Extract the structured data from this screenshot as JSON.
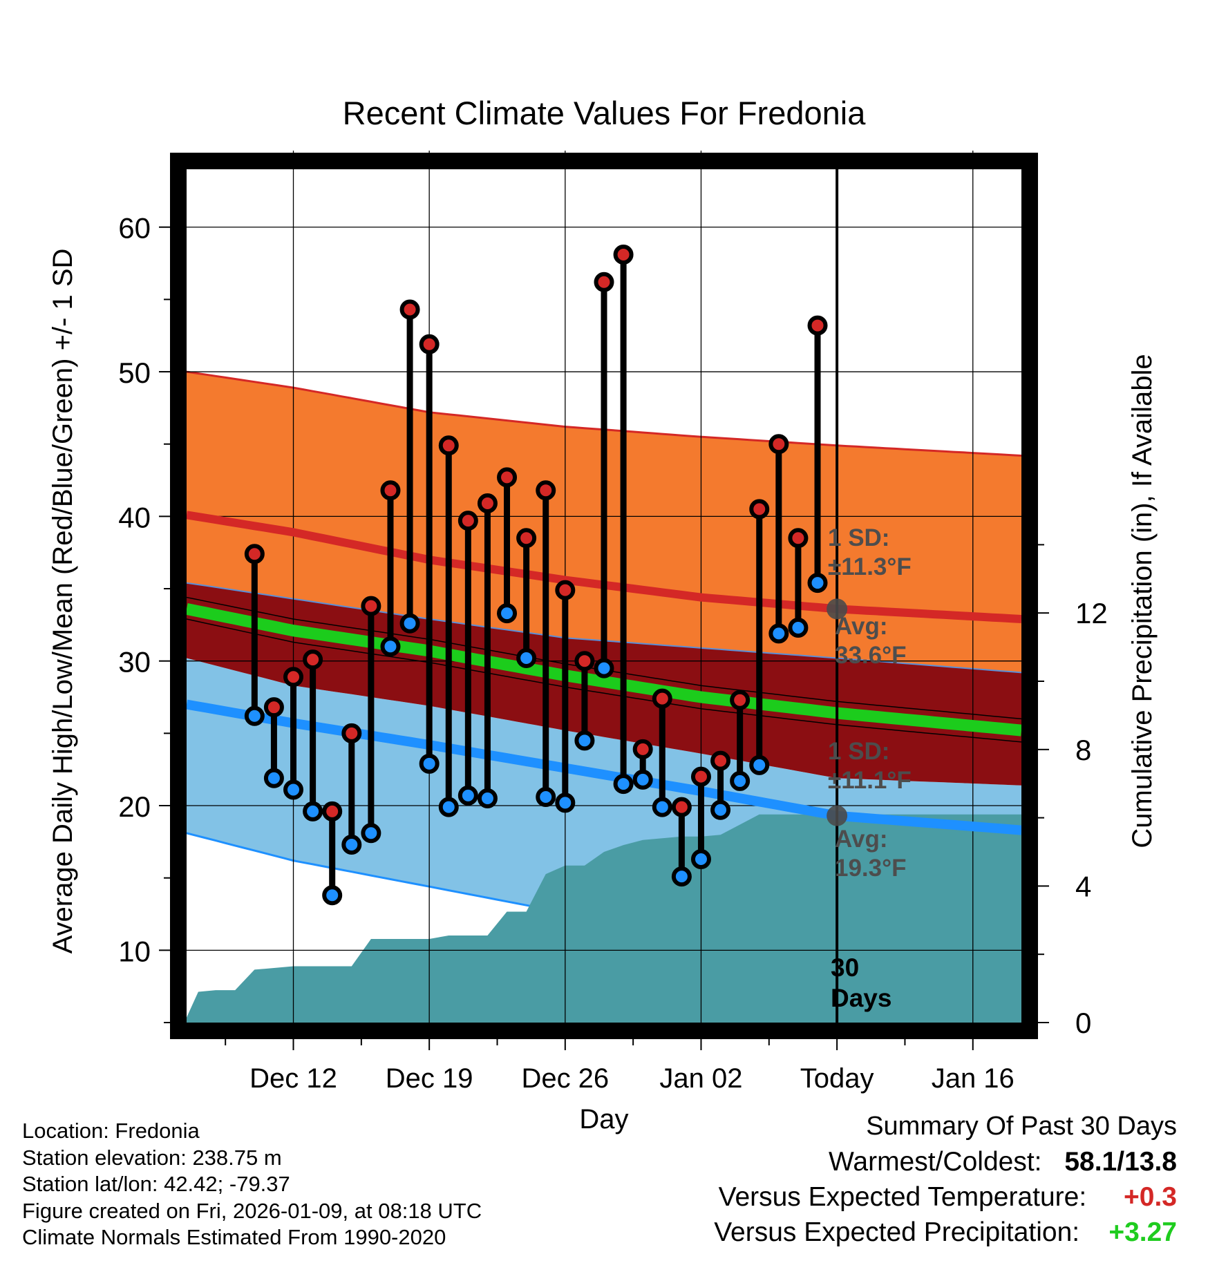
{
  "chart_data": {
    "type": "line",
    "title": "Recent Climate Values For Fredonia",
    "xlabel": "Day",
    "ylabel_left": "Average Daily High/Low/Mean (Red/Blue/Green) +/- 1 SD",
    "ylabel_right": "Cumulative Precipitation (in), If Available",
    "ylim_left": [
      5,
      64
    ],
    "ylim_right": [
      0,
      25
    ],
    "xlim_days": [
      -33.5,
      9.5
    ],
    "left_ticks": [
      "10",
      "20",
      "30",
      "40",
      "50",
      "60"
    ],
    "left_tick_values": [
      10,
      20,
      30,
      40,
      50,
      60
    ],
    "right_ticks": [
      "0",
      "4",
      "8",
      "12"
    ],
    "right_tick_values": [
      0,
      4,
      8,
      12
    ],
    "x_ticks": [
      {
        "day": -28,
        "label": "Dec 12"
      },
      {
        "day": -21,
        "label": "Dec 19"
      },
      {
        "day": -14,
        "label": "Dec 26"
      },
      {
        "day": -7,
        "label": "Jan 02"
      },
      {
        "day": 0,
        "label": "Today"
      },
      {
        "day": 7,
        "label": "Jan 16"
      }
    ],
    "normal_high": {
      "days": [
        -33.5,
        -28,
        -21,
        -14,
        -7,
        0,
        9.5
      ],
      "values": [
        40.1,
        38.9,
        37.0,
        35.6,
        34.4,
        33.6,
        32.9
      ]
    },
    "normal_high_upper": {
      "days": [
        -33.5,
        -28,
        -21,
        -14,
        -7,
        0,
        9.5
      ],
      "values": [
        50.0,
        48.9,
        47.2,
        46.2,
        45.5,
        44.9,
        44.2
      ]
    },
    "normal_high_lower": {
      "days": [
        -33.5,
        -28,
        -21,
        -14,
        -7,
        0,
        9.5
      ],
      "values": [
        35.4,
        34.3,
        32.9,
        31.6,
        30.9,
        30.2,
        29.2
      ]
    },
    "normal_mean": {
      "days": [
        -33.5,
        -28,
        -21,
        -14,
        -7,
        0,
        9.5
      ],
      "values": [
        33.6,
        32.1,
        30.7,
        29.0,
        27.5,
        26.4,
        25.2
      ]
    },
    "normal_mean_upper": {
      "days": [
        -33.5,
        -28,
        -21,
        -14,
        -7,
        0,
        9.5
      ],
      "values": [
        34.4,
        32.9,
        31.5,
        29.8,
        28.3,
        27.2,
        26.0
      ]
    },
    "normal_mean_lower": {
      "days": [
        -33.5,
        -28,
        -21,
        -14,
        -7,
        0,
        9.5
      ],
      "values": [
        32.9,
        31.3,
        29.9,
        28.2,
        26.7,
        25.6,
        24.4
      ]
    },
    "normal_low": {
      "days": [
        -33.5,
        -28,
        -21,
        -14,
        -7,
        0,
        9.5
      ],
      "values": [
        27.0,
        25.7,
        24.2,
        22.6,
        21.0,
        19.3,
        18.3
      ]
    },
    "normal_low_upper": {
      "days": [
        -33.5,
        -28,
        -21,
        -14,
        -7,
        0,
        9.5
      ],
      "values": [
        30.2,
        28.3,
        26.9,
        25.2,
        23.6,
        21.9,
        21.4
      ]
    },
    "normal_low_lower": {
      "days": [
        -33.5,
        -28,
        -21,
        -14,
        -7,
        0,
        9.5
      ],
      "values": [
        18.1,
        16.2,
        14.4,
        12.6,
        10.8,
        8.9,
        8.4
      ]
    },
    "precip": {
      "days": [
        -33.5,
        -32.9,
        -32,
        -31,
        -30,
        -29,
        -28,
        -27,
        -26,
        -25,
        -24,
        -23,
        -22,
        -21,
        -20,
        -19,
        -18,
        -17,
        -16,
        -15,
        -14,
        -13,
        -12,
        -11,
        -10,
        -9,
        -8,
        -7,
        -6,
        -5,
        -4,
        -3,
        -2,
        -1,
        0,
        9.5
      ],
      "values": [
        0.15,
        0.9,
        0.95,
        0.95,
        1.55,
        1.6,
        1.65,
        1.65,
        1.65,
        1.65,
        2.45,
        2.45,
        2.45,
        2.45,
        2.55,
        2.55,
        2.55,
        3.25,
        3.25,
        4.35,
        4.6,
        4.6,
        5.0,
        5.2,
        5.35,
        5.4,
        5.45,
        5.45,
        5.5,
        5.8,
        6.1,
        6.1,
        6.1,
        6.1,
        6.1,
        6.1
      ]
    },
    "daily": {
      "days": [
        -30,
        -29,
        -28,
        -27,
        -26,
        -25,
        -24,
        -23,
        -22,
        -21,
        -20,
        -19,
        -18,
        -17,
        -16,
        -15,
        -14,
        -13,
        -12,
        -11,
        -10,
        -9,
        -8,
        -7,
        -6,
        -5,
        -4,
        -3,
        -2,
        -1
      ],
      "highs": [
        37.4,
        26.8,
        28.9,
        30.1,
        19.6,
        25.0,
        33.8,
        41.8,
        54.3,
        51.9,
        44.9,
        39.7,
        40.9,
        42.7,
        38.5,
        41.8,
        34.9,
        30.0,
        56.2,
        58.1,
        23.9,
        27.4,
        19.9,
        22.0,
        23.1,
        27.3,
        40.5,
        45.0,
        38.5,
        53.2
      ],
      "lows": [
        26.2,
        21.9,
        21.1,
        19.6,
        13.8,
        17.3,
        18.1,
        31.0,
        32.6,
        22.9,
        19.9,
        20.7,
        20.5,
        33.3,
        30.2,
        20.6,
        20.2,
        24.5,
        29.5,
        21.5,
        21.8,
        19.9,
        15.1,
        16.3,
        19.7,
        21.7,
        22.8,
        31.9,
        32.3,
        35.4
      ]
    },
    "annotations": {
      "high_sd": "1 SD:\n±11.3°F",
      "high_avg": "Avg:\n33.6°F",
      "low_sd": "1 SD:\n±11.1°F",
      "low_avg": "Avg:\n19.3°F",
      "days_label": "30\nDays"
    },
    "avg_markers": [
      33.6,
      19.3
    ]
  },
  "colors": {
    "high_band": "#f47a2e",
    "high_line": "#d42826",
    "mean_band": "#8b0e12",
    "mean_line": "#1ccc1c",
    "low_band": "#82c2e6",
    "low_line": "#1e90ff",
    "precip_fill": "#4a9ca4",
    "high_dot": "#d42826",
    "low_dot": "#1e90ff",
    "annotation_text": "#4d4d4d",
    "positive_temp": "#d42826",
    "positive_precip": "#1ecc1e"
  },
  "info": {
    "location": "Location: Fredonia",
    "elevation": "Station elevation: 238.75 m",
    "latlon": "Station lat/lon: 42.42; -79.37",
    "created": "Figure created on Fri, 2026-01-09, at 08:18 UTC",
    "normals": "Climate Normals Estimated From 1990-2020"
  },
  "summary": {
    "heading": "Summary Of Past 30 Days",
    "warm_cold_label": "Warmest/Coldest:",
    "warm_cold_value": "58.1/13.8",
    "temp_label": "Versus Expected Temperature:",
    "temp_value": "+0.3",
    "precip_label": "Versus Expected Precipitation:",
    "precip_value": "+3.27"
  }
}
